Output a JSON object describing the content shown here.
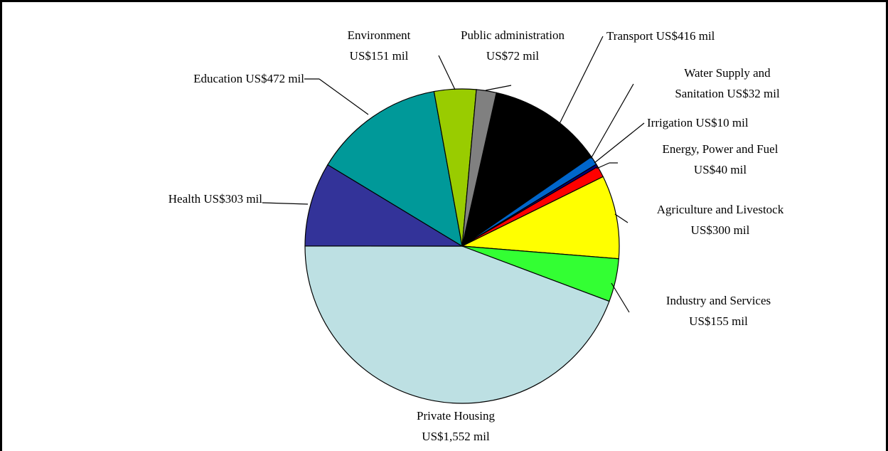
{
  "chart_data": {
    "type": "pie",
    "categories": [
      "Transport",
      "Water Supply and Sanitation",
      "Irrigation",
      "Energy, Power and Fuel",
      "Agriculture and Livestock",
      "Industry and Services",
      "Private Housing",
      "Health",
      "Education",
      "Environment",
      "Public administration"
    ],
    "values": [
      416,
      32,
      10,
      40,
      300,
      155,
      1552,
      303,
      472,
      151,
      72
    ],
    "value_labels": [
      "US$416 mil",
      "US$32 mil",
      "US$10 mil",
      "US$40 mil",
      "US$300 mil",
      "US$155 mil",
      "US$1,552 mil",
      "US$303 mil",
      "US$472 mil",
      "US$151 mil",
      "US$72 mil"
    ],
    "colors": [
      "#000000",
      "#0066cc",
      "#000080",
      "#ff0000",
      "#ffff00",
      "#33ff33",
      "#bde0e3",
      "#333399",
      "#009999",
      "#99cc00",
      "#808080"
    ]
  }
}
